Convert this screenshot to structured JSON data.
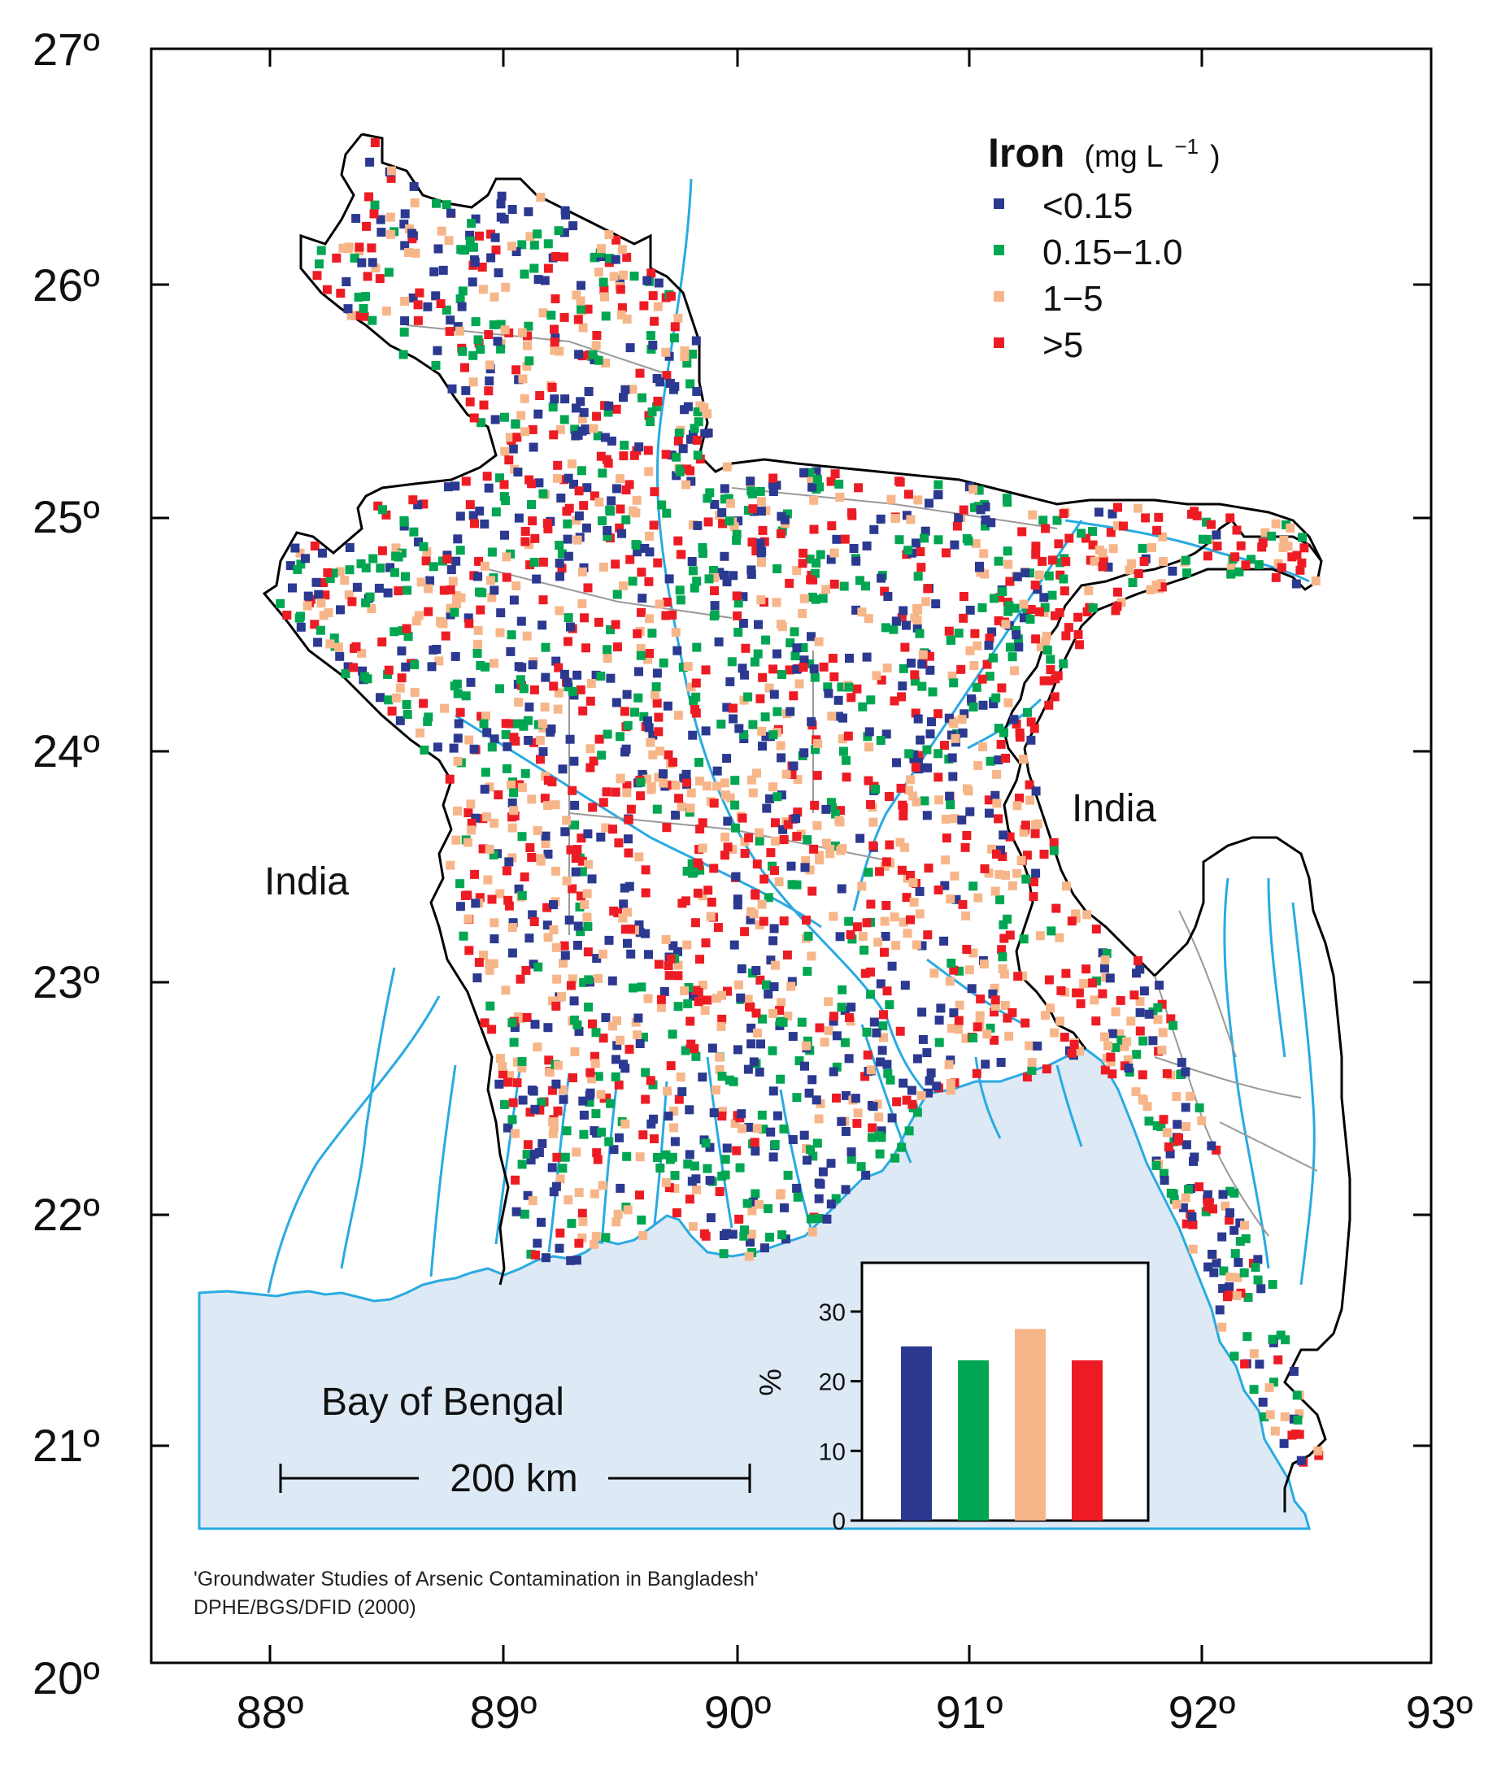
{
  "map": {
    "axes": {
      "latitude_labels": [
        "27º",
        "26º",
        "25º",
        "24º",
        "23º",
        "22º",
        "21º",
        "20º"
      ],
      "longitude_labels": [
        "88º",
        "89º",
        "90º",
        "91º",
        "92º",
        "93º"
      ],
      "lat_range": [
        20,
        27
      ],
      "lon_range": [
        87.5,
        93
      ]
    },
    "labels": {
      "india_west": "India",
      "india_east": "India",
      "bay": "Bay of Bengal",
      "scale": "200 km"
    },
    "legend": {
      "title": "Iron",
      "unit": "(mg L",
      "unit_exp": "−1",
      "unit_close": ")",
      "placement": "top-right",
      "entries": [
        {
          "label": "<0.15",
          "color": "#2b3990"
        },
        {
          "label": "0.15−1.0",
          "color": "#00a651"
        },
        {
          "label": "1−5",
          "color": "#f7b68a"
        },
        {
          "label": ">5",
          "color": "#ed1c24"
        }
      ]
    },
    "credit": {
      "line1": "'Groundwater Studies of Arsenic Contamination in Bangladesh'",
      "line2": "DPHE/BGS/DFID (2000)"
    },
    "colors": {
      "water": "#dde9f4",
      "river": "#29aae2",
      "border": "#000000",
      "district": "#999999"
    }
  },
  "chart_data": {
    "type": "bar",
    "categories": [
      "<0.15",
      "0.15−1.0",
      "1−5",
      ">5"
    ],
    "values": [
      25,
      23,
      27.5,
      23
    ],
    "colors": [
      "#2b3990",
      "#00a651",
      "#f7b68a",
      "#ed1c24"
    ],
    "ylabel": "%",
    "yticks": [
      "0",
      "10",
      "20",
      "30"
    ],
    "ylim": [
      0,
      37
    ]
  }
}
